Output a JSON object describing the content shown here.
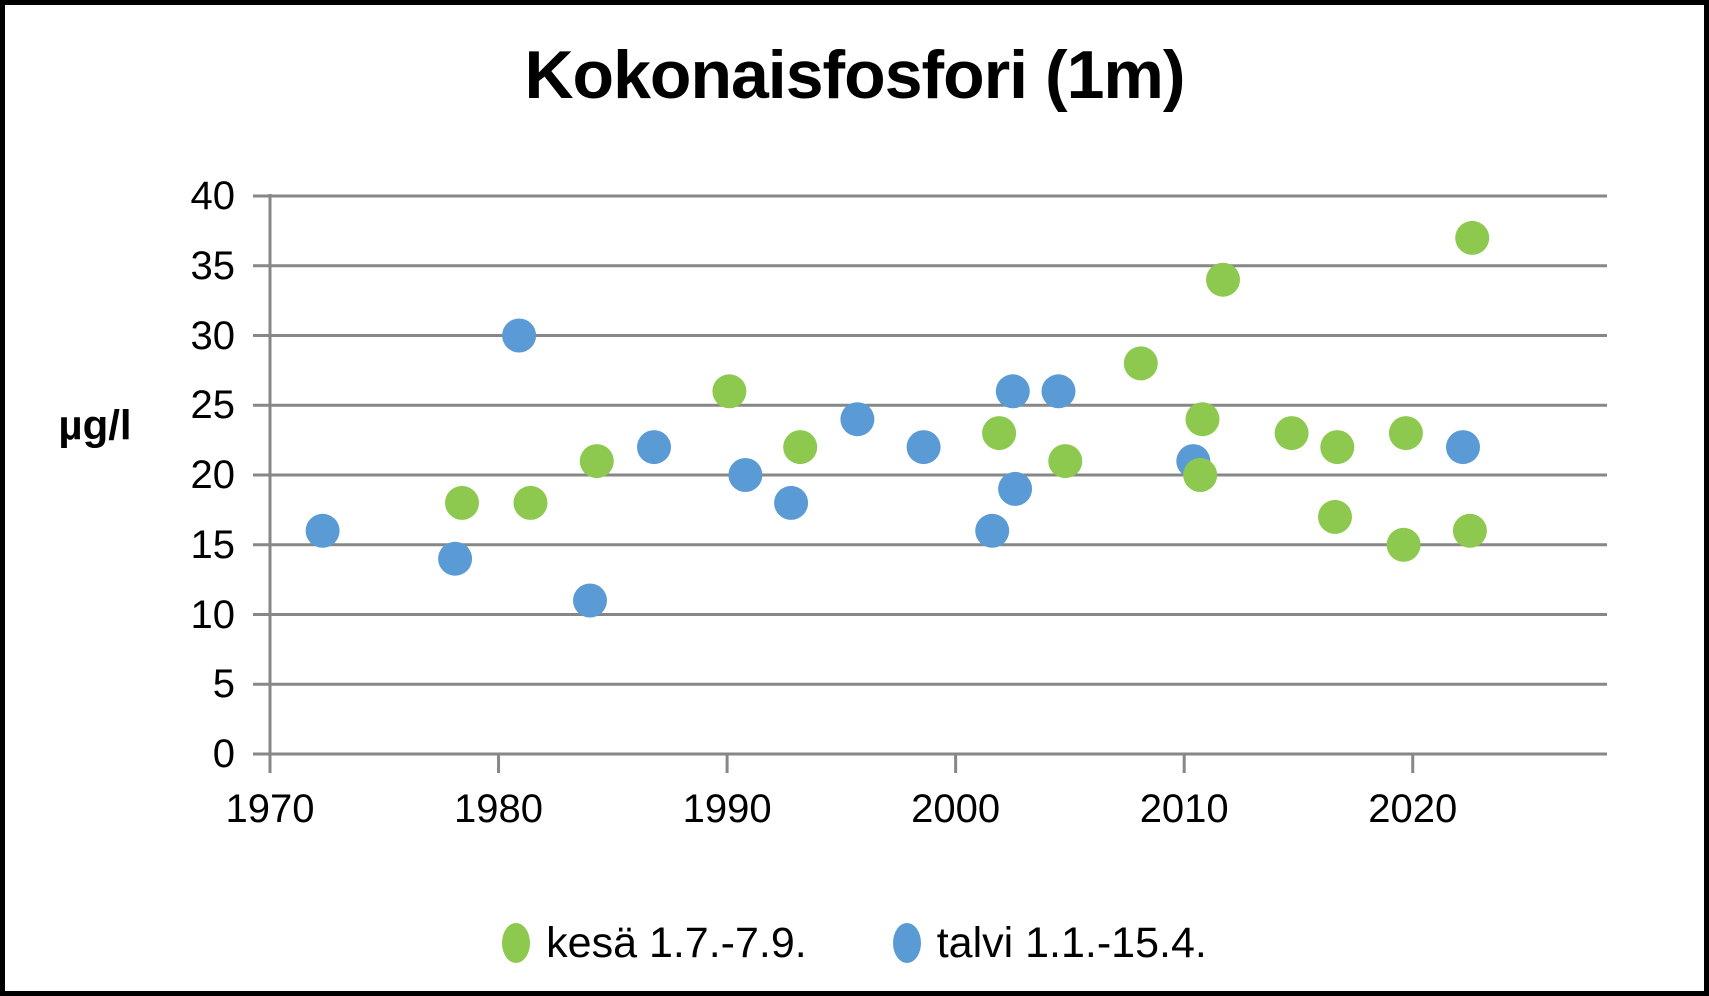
{
  "chart_data": {
    "type": "scatter",
    "title": "Kokonaisfosfori (1m)",
    "ylabel": "µg/l",
    "xlabel": "",
    "ylim": [
      0,
      40
    ],
    "xlim": [
      1970,
      2028.5
    ],
    "yticks": [
      40,
      35,
      30,
      25,
      20,
      15,
      10,
      5,
      0
    ],
    "xticks": [
      1970,
      1980,
      1990,
      2000,
      2010,
      2020
    ],
    "grid": "horizontal-only",
    "gridline_color": "#878787",
    "legend_position": "bottom-center",
    "series": [
      {
        "name": "kesä 1.7.-7.9.",
        "color": "#8dc94e",
        "points": [
          [
            1978.4,
            18
          ],
          [
            1981.4,
            18
          ],
          [
            1984.3,
            21
          ],
          [
            1990.1,
            26
          ],
          [
            1993.2,
            22
          ],
          [
            2001.9,
            23
          ],
          [
            2004.8,
            21
          ],
          [
            2008.1,
            28
          ],
          [
            2010.7,
            20
          ],
          [
            2010.8,
            24
          ],
          [
            2011.7,
            34
          ],
          [
            2014.7,
            23
          ],
          [
            2016.6,
            17
          ],
          [
            2016.7,
            22
          ],
          [
            2019.6,
            15
          ],
          [
            2019.7,
            23
          ],
          [
            2022.5,
            16
          ],
          [
            2022.6,
            37
          ]
        ]
      },
      {
        "name": "talvi 1.1.-15.4.",
        "color": "#5b9bd5",
        "points": [
          [
            1972.3,
            16
          ],
          [
            1978.1,
            14
          ],
          [
            1980.9,
            30
          ],
          [
            1984.0,
            11
          ],
          [
            1986.8,
            22
          ],
          [
            1990.8,
            20
          ],
          [
            1992.8,
            18
          ],
          [
            1995.7,
            24
          ],
          [
            1998.6,
            22
          ],
          [
            2001.6,
            16
          ],
          [
            2002.5,
            26
          ],
          [
            2002.6,
            19
          ],
          [
            2004.5,
            26
          ],
          [
            2010.4,
            21
          ],
          [
            2022.2,
            22
          ]
        ]
      }
    ]
  },
  "legend": {
    "items": [
      {
        "label": "kesä 1.7.-7.9.",
        "color": "#8dc94e"
      },
      {
        "label": "talvi 1.1.-15.4.",
        "color": "#5b9bd5"
      }
    ]
  }
}
